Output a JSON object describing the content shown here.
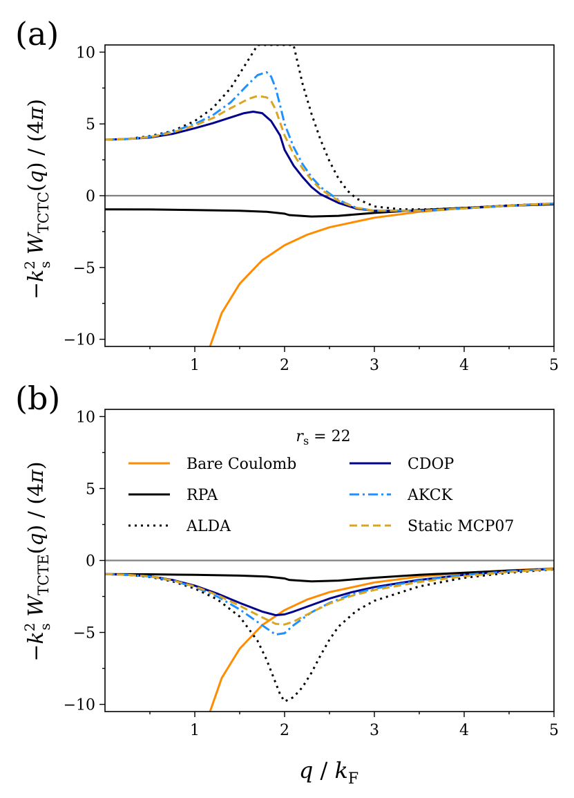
{
  "chart_data": {
    "type": "line",
    "x_axis": {
      "label": "q / k_F",
      "range": [
        0,
        5
      ],
      "major_ticks": [
        1,
        2,
        3,
        4,
        5
      ],
      "minor_step": 0.5
    },
    "colors": {
      "Bare Coulomb": "#ff8c00",
      "RPA": "#000000",
      "ALDA": "#000000",
      "CDOP": "#00008b",
      "AKCK": "#1e90ff",
      "Static MCP07": "#daa520",
      "zero_line": "#808080"
    },
    "legend": {
      "title": "r_s = 22",
      "location": "top-center (panel b)",
      "ncols": 2,
      "entries": [
        {
          "label": "Bare Coulomb",
          "style": "solid"
        },
        {
          "label": "CDOP",
          "style": "solid"
        },
        {
          "label": "RPA",
          "style": "solid"
        },
        {
          "label": "AKCK",
          "style": "dashdot"
        },
        {
          "label": "ALDA",
          "style": "dotted"
        },
        {
          "label": "Static MCP07",
          "style": "dashed"
        }
      ]
    },
    "panels": [
      {
        "label": "(a)",
        "ylabel": "-k_s^2 W_TCTC(q) / (4π)",
        "ylim": [
          -10.5,
          10.5
        ],
        "yticks": [
          -10,
          -5,
          0,
          5,
          10
        ],
        "ytick_labels": [
          "−10",
          "−5",
          "0",
          "5",
          "10"
        ],
        "series": [
          {
            "name": "Bare Coulomb",
            "x": [
              1.17,
              1.3,
              1.5,
              1.75,
              2.0,
              2.25,
              2.5,
              3.0,
              3.5,
              4.0,
              4.5,
              5.0
            ],
            "y": [
              -10.5,
              -8.17,
              -6.13,
              -4.5,
              -3.45,
              -2.72,
              -2.2,
              -1.53,
              -1.12,
              -0.86,
              -0.68,
              -0.55
            ]
          },
          {
            "name": "RPA",
            "x": [
              0,
              0.5,
              1.0,
              1.5,
              1.8,
              2.0,
              2.05,
              2.3,
              2.6,
              3.0,
              3.5,
              4.0,
              4.5,
              5.0
            ],
            "y": [
              -0.95,
              -0.96,
              -1.0,
              -1.05,
              -1.12,
              -1.25,
              -1.35,
              -1.45,
              -1.4,
              -1.2,
              -1.0,
              -0.85,
              -0.7,
              -0.6
            ]
          },
          {
            "name": "ALDA",
            "x": [
              0,
              0.25,
              0.5,
              0.75,
              1.0,
              1.2,
              1.4,
              1.6,
              1.7,
              2.1,
              2.2,
              2.3,
              2.4,
              2.5,
              2.6,
              2.7,
              2.8,
              3.0,
              3.3,
              3.6,
              4.0,
              4.5,
              5.0
            ],
            "y": [
              3.9,
              3.95,
              4.15,
              4.5,
              5.2,
              6.1,
              7.5,
              9.5,
              10.5,
              10.5,
              7.8,
              5.7,
              3.9,
              2.4,
              1.2,
              0.35,
              -0.2,
              -0.75,
              -0.95,
              -0.95,
              -0.85,
              -0.68,
              -0.55
            ]
          },
          {
            "name": "CDOP",
            "x": [
              0,
              0.25,
              0.5,
              0.75,
              1.0,
              1.2,
              1.4,
              1.55,
              1.65,
              1.75,
              1.85,
              1.95,
              2.0,
              2.1,
              2.2,
              2.3,
              2.4,
              2.6,
              2.8,
              3.0,
              3.5,
              4.0,
              4.5,
              5.0
            ],
            "y": [
              3.9,
              3.95,
              4.05,
              4.3,
              4.7,
              5.05,
              5.45,
              5.75,
              5.85,
              5.75,
              5.2,
              4.2,
              3.2,
              2.1,
              1.3,
              0.6,
              0.1,
              -0.5,
              -0.9,
              -1.05,
              -1.05,
              -0.88,
              -0.7,
              -0.55
            ]
          },
          {
            "name": "AKCK",
            "x": [
              0,
              0.25,
              0.5,
              0.75,
              1.0,
              1.2,
              1.4,
              1.6,
              1.7,
              1.8,
              1.85,
              1.9,
              1.95,
              2.0,
              2.1,
              2.2,
              2.3,
              2.4,
              2.6,
              2.8,
              3.0,
              3.5,
              4.0,
              4.5,
              5.0
            ],
            "y": [
              3.9,
              3.95,
              4.1,
              4.45,
              5.0,
              5.6,
              6.5,
              7.8,
              8.4,
              8.6,
              8.3,
              7.5,
              6.3,
              5.0,
              3.4,
              2.2,
              1.3,
              0.6,
              -0.3,
              -0.85,
              -1.05,
              -1.05,
              -0.88,
              -0.7,
              -0.55
            ]
          },
          {
            "name": "Static MCP07",
            "x": [
              0,
              0.25,
              0.5,
              0.75,
              1.0,
              1.2,
              1.4,
              1.6,
              1.7,
              1.8,
              1.85,
              1.9,
              1.95,
              2.0,
              2.1,
              2.2,
              2.3,
              2.4,
              2.6,
              2.8,
              3.0,
              3.5,
              4.0,
              4.5,
              5.0
            ],
            "y": [
              3.9,
              3.95,
              4.08,
              4.4,
              4.9,
              5.4,
              6.1,
              6.75,
              6.95,
              6.85,
              6.6,
              6.0,
              5.1,
              4.2,
              2.9,
              1.9,
              1.1,
              0.45,
              -0.35,
              -0.85,
              -1.05,
              -1.05,
              -0.88,
              -0.7,
              -0.55
            ]
          }
        ]
      },
      {
        "label": "(b)",
        "ylabel": "-k_s^2 W_TCTE(q) / (4π)",
        "ylim": [
          -10.5,
          10.5
        ],
        "yticks": [
          -10,
          -5,
          0,
          5,
          10
        ],
        "ytick_labels": [
          "−10",
          "−5",
          "0",
          "5",
          "10"
        ],
        "series": [
          {
            "name": "Bare Coulomb",
            "x": [
              1.17,
              1.3,
              1.5,
              1.75,
              2.0,
              2.25,
              2.5,
              3.0,
              3.5,
              4.0,
              4.5,
              5.0
            ],
            "y": [
              -10.5,
              -8.17,
              -6.13,
              -4.5,
              -3.45,
              -2.72,
              -2.2,
              -1.53,
              -1.12,
              -0.86,
              -0.68,
              -0.55
            ]
          },
          {
            "name": "RPA",
            "x": [
              0,
              0.5,
              1.0,
              1.5,
              1.8,
              2.0,
              2.05,
              2.3,
              2.6,
              3.0,
              3.5,
              4.0,
              4.5,
              5.0
            ],
            "y": [
              -0.95,
              -0.96,
              -1.0,
              -1.05,
              -1.12,
              -1.25,
              -1.35,
              -1.45,
              -1.4,
              -1.2,
              -1.0,
              -0.85,
              -0.7,
              -0.6
            ]
          },
          {
            "name": "ALDA",
            "x": [
              0,
              0.25,
              0.5,
              0.75,
              1.0,
              1.25,
              1.5,
              1.7,
              1.8,
              1.9,
              1.95,
              2.0,
              2.1,
              2.2,
              2.3,
              2.4,
              2.5,
              2.6,
              2.8,
              3.0,
              3.5,
              4.0,
              4.5,
              5.0
            ],
            "y": [
              -0.95,
              -1.0,
              -1.15,
              -1.45,
              -1.95,
              -2.7,
              -3.9,
              -5.6,
              -6.9,
              -8.5,
              -9.3,
              -9.8,
              -9.5,
              -8.8,
              -7.8,
              -6.6,
              -5.5,
              -4.6,
              -3.5,
              -2.8,
              -1.8,
              -1.2,
              -0.85,
              -0.62
            ]
          },
          {
            "name": "CDOP",
            "x": [
              0,
              0.25,
              0.5,
              0.75,
              1.0,
              1.25,
              1.5,
              1.75,
              1.9,
              2.0,
              2.1,
              2.3,
              2.5,
              2.75,
              3.0,
              3.5,
              4.0,
              4.5,
              5.0
            ],
            "y": [
              -0.95,
              -1.0,
              -1.1,
              -1.35,
              -1.75,
              -2.3,
              -2.95,
              -3.55,
              -3.8,
              -3.75,
              -3.55,
              -3.1,
              -2.65,
              -2.2,
              -1.85,
              -1.35,
              -1.0,
              -0.75,
              -0.58
            ]
          },
          {
            "name": "AKCK",
            "x": [
              0,
              0.25,
              0.5,
              0.75,
              1.0,
              1.25,
              1.5,
              1.75,
              1.9,
              2.0,
              2.1,
              2.3,
              2.5,
              2.75,
              3.0,
              3.5,
              4.0,
              4.5,
              5.0
            ],
            "y": [
              -0.95,
              -1.0,
              -1.12,
              -1.4,
              -1.85,
              -2.5,
              -3.4,
              -4.5,
              -5.15,
              -5.05,
              -4.5,
              -3.6,
              -2.95,
              -2.35,
              -1.95,
              -1.4,
              -1.0,
              -0.76,
              -0.58
            ]
          },
          {
            "name": "Static MCP07",
            "x": [
              0,
              0.25,
              0.5,
              0.75,
              1.0,
              1.25,
              1.5,
              1.75,
              1.9,
              2.0,
              2.1,
              2.3,
              2.5,
              2.75,
              3.0,
              3.5,
              4.0,
              4.5,
              5.0
            ],
            "y": [
              -0.95,
              -1.0,
              -1.1,
              -1.38,
              -1.8,
              -2.4,
              -3.15,
              -3.95,
              -4.4,
              -4.45,
              -4.25,
              -3.6,
              -3.0,
              -2.45,
              -2.05,
              -1.5,
              -1.1,
              -0.8,
              -0.6
            ]
          }
        ]
      }
    ]
  }
}
